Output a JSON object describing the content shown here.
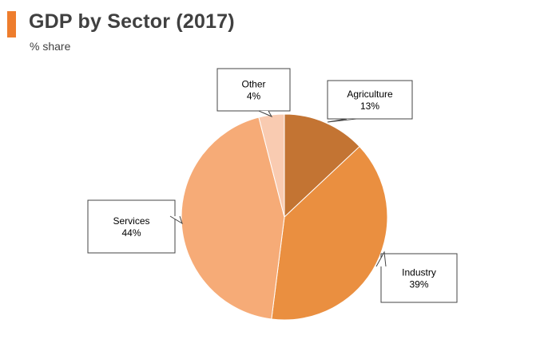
{
  "header": {
    "title": "GDP by Sector (2017)",
    "subtitle": "% share",
    "accent_color": "#ee7d2d"
  },
  "chart_data": {
    "type": "pie",
    "title": "GDP by Sector (2017)",
    "subtitle": "% share",
    "unit": "%",
    "slices": [
      {
        "label": "Agriculture",
        "value": 13,
        "value_label": "13%",
        "color": "#c37433"
      },
      {
        "label": "Industry",
        "value": 39,
        "value_label": "39%",
        "color": "#ea8f40"
      },
      {
        "label": "Services",
        "value": 44,
        "value_label": "44%",
        "color": "#f6ab77"
      },
      {
        "label": "Other",
        "value": 4,
        "value_label": "4%",
        "color": "#f9cbb1"
      }
    ],
    "start_angle_deg": 0,
    "direction": "clockwise",
    "legend": "none",
    "labels": "callouts"
  }
}
